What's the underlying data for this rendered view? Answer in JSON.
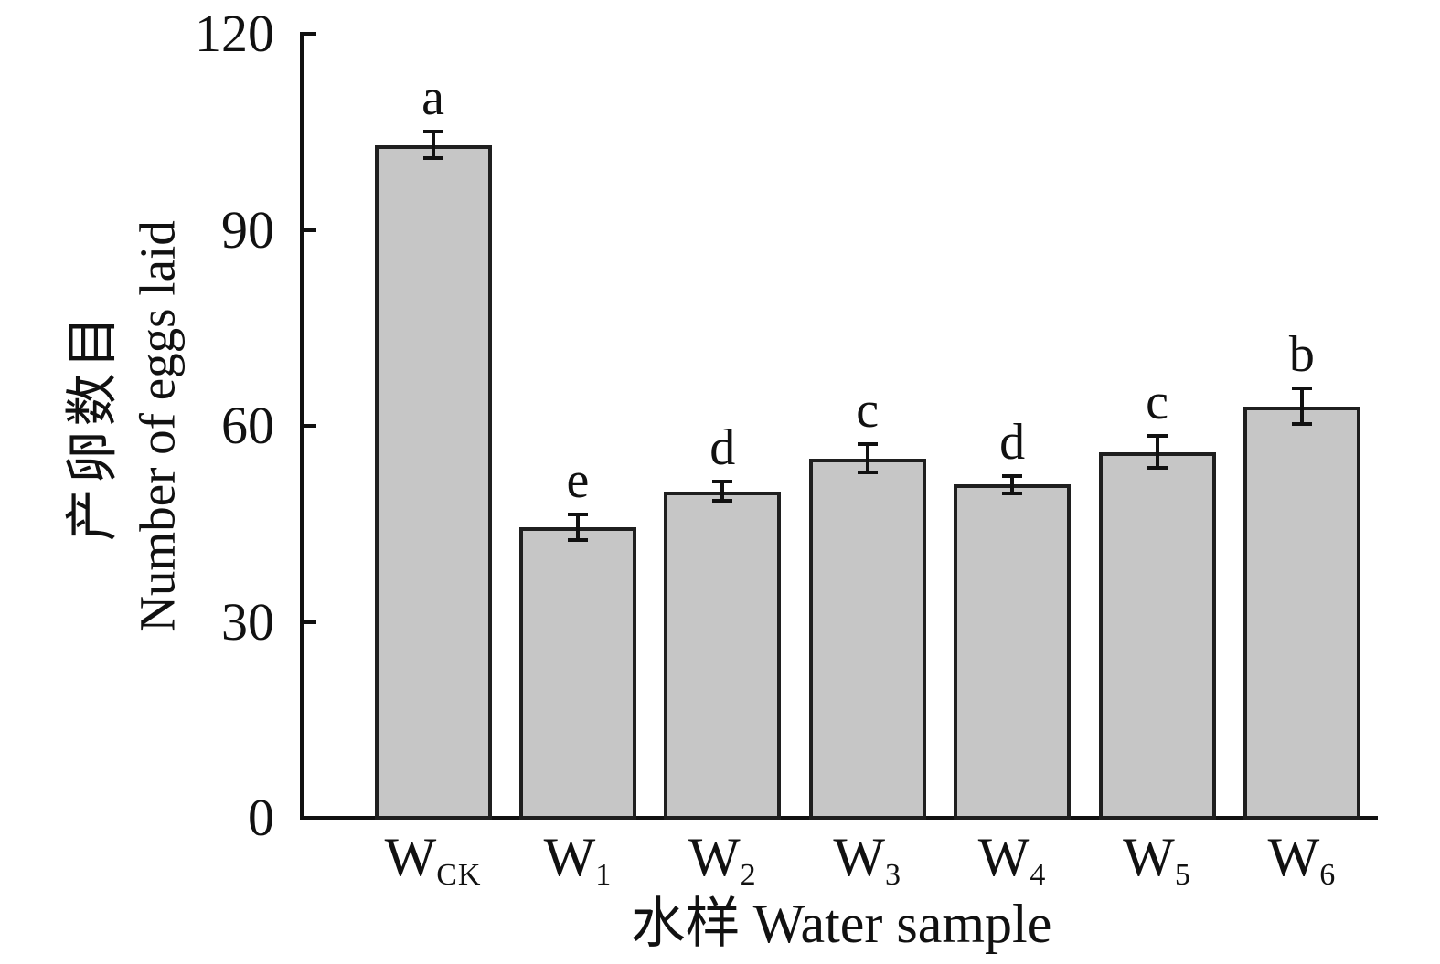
{
  "chart_data": {
    "type": "bar",
    "title": "",
    "ylabel_zh": "产卵数目",
    "ylabel_en": "Number of eggs laid",
    "xlabel_zh": "水样",
    "xlabel_en": "Water sample",
    "ylim": [
      0,
      120
    ],
    "yticks": [
      0,
      30,
      60,
      90,
      120
    ],
    "categories": [
      {
        "base": "W",
        "sub": "CK"
      },
      {
        "base": "W",
        "sub": "1"
      },
      {
        "base": "W",
        "sub": "2"
      },
      {
        "base": "W",
        "sub": "3"
      },
      {
        "base": "W",
        "sub": "4"
      },
      {
        "base": "W",
        "sub": "5"
      },
      {
        "base": "W",
        "sub": "6"
      }
    ],
    "values": [
      103,
      44.5,
      50,
      55,
      51,
      56,
      63
    ],
    "errors": [
      2,
      2,
      1.4,
      2.2,
      1.3,
      2.4,
      2.7
    ],
    "sig_letters": [
      "a",
      "e",
      "d",
      "c",
      "d",
      "c",
      "b"
    ],
    "bar_fill": "#c6c6c6",
    "bar_border": "#1f1f1f",
    "axis_color": "#111111",
    "grid": false,
    "legend": false
  }
}
